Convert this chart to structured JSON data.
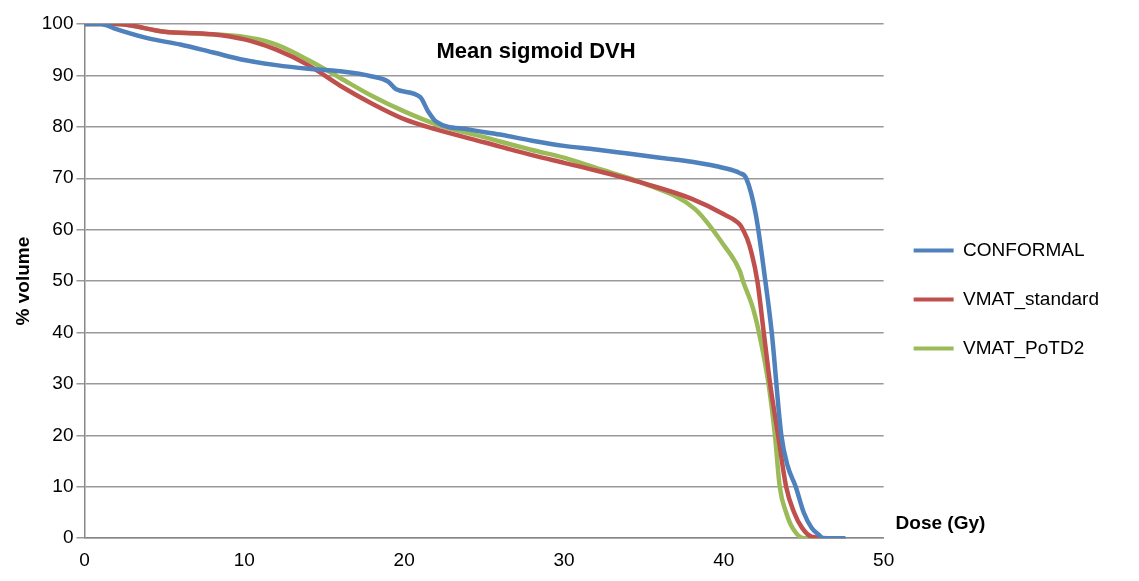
{
  "chart_data": {
    "type": "line",
    "title": "Mean sigmoid DVH",
    "xlabel": "Dose (Gy)",
    "ylabel": "% volume",
    "xlim": [
      0,
      50
    ],
    "xticks": [
      0,
      10,
      20,
      30,
      40,
      50
    ],
    "ylim": [
      0,
      100
    ],
    "yticks": [
      0,
      10,
      20,
      30,
      40,
      50,
      60,
      70,
      80,
      90,
      100
    ],
    "grid": "y",
    "legend": "right",
    "marker": "none",
    "line_style": "solid",
    "series": [
      {
        "name": "CONFORMAL",
        "color": "#4f81bd",
        "x": [
          0,
          1,
          2,
          4,
          6,
          8,
          10,
          12,
          14,
          16,
          18,
          19,
          19.5,
          21,
          21.5,
          22,
          24,
          26,
          28,
          30,
          32,
          34,
          36,
          38,
          40,
          41,
          41.4,
          42,
          42.6,
          43,
          43.6,
          44,
          44.5,
          45,
          45.5,
          46,
          46.2,
          47,
          47.5
        ],
        "values": [
          100,
          100,
          99,
          97.2,
          96,
          94.5,
          93,
          92,
          91.3,
          90.8,
          89.8,
          88.8,
          87.3,
          85.8,
          83,
          81,
          79.5,
          78.5,
          77.3,
          76.3,
          75.6,
          74.8,
          74,
          73.2,
          72,
          71,
          70,
          63,
          50,
          40,
          20,
          14,
          10,
          5,
          2,
          0.5,
          0,
          0,
          0
        ]
      },
      {
        "name": "VMAT_standard",
        "color": "#c0504d",
        "x": [
          0,
          2,
          5,
          8,
          10,
          12,
          14,
          16,
          18,
          20,
          22,
          25,
          28,
          30,
          32,
          35,
          38,
          40,
          41,
          41.2,
          41.6,
          42.1,
          42.5,
          42.9,
          43.4,
          43.9,
          44.4,
          44.9,
          45.5,
          47,
          47.5
        ],
        "values": [
          100,
          100,
          98.5,
          98,
          97,
          95,
          92,
          88,
          84.5,
          81.5,
          79.5,
          77,
          74.5,
          73,
          71.5,
          69,
          66,
          63,
          61,
          60,
          57,
          50,
          40,
          30,
          20,
          10,
          5,
          2,
          0.3,
          0,
          0
        ]
      },
      {
        "name": "VMAT_PoTD2",
        "color": "#9bbb59",
        "x": [
          0,
          2,
          5,
          8,
          10,
          12,
          14,
          16,
          18,
          20,
          22,
          25,
          28,
          30,
          32,
          35,
          38.2,
          40,
          41,
          41.2,
          41.8,
          42.2,
          42.8,
          43.2,
          43.5,
          43.9,
          44.3,
          45,
          47,
          47.3
        ],
        "values": [
          100,
          100,
          98.5,
          98,
          97.5,
          96,
          93,
          89.5,
          86,
          83,
          80.5,
          78,
          75.5,
          74,
          72,
          69,
          64,
          57,
          52,
          50,
          45,
          40,
          30,
          20,
          10,
          5,
          2,
          0,
          0,
          0
        ]
      }
    ]
  }
}
